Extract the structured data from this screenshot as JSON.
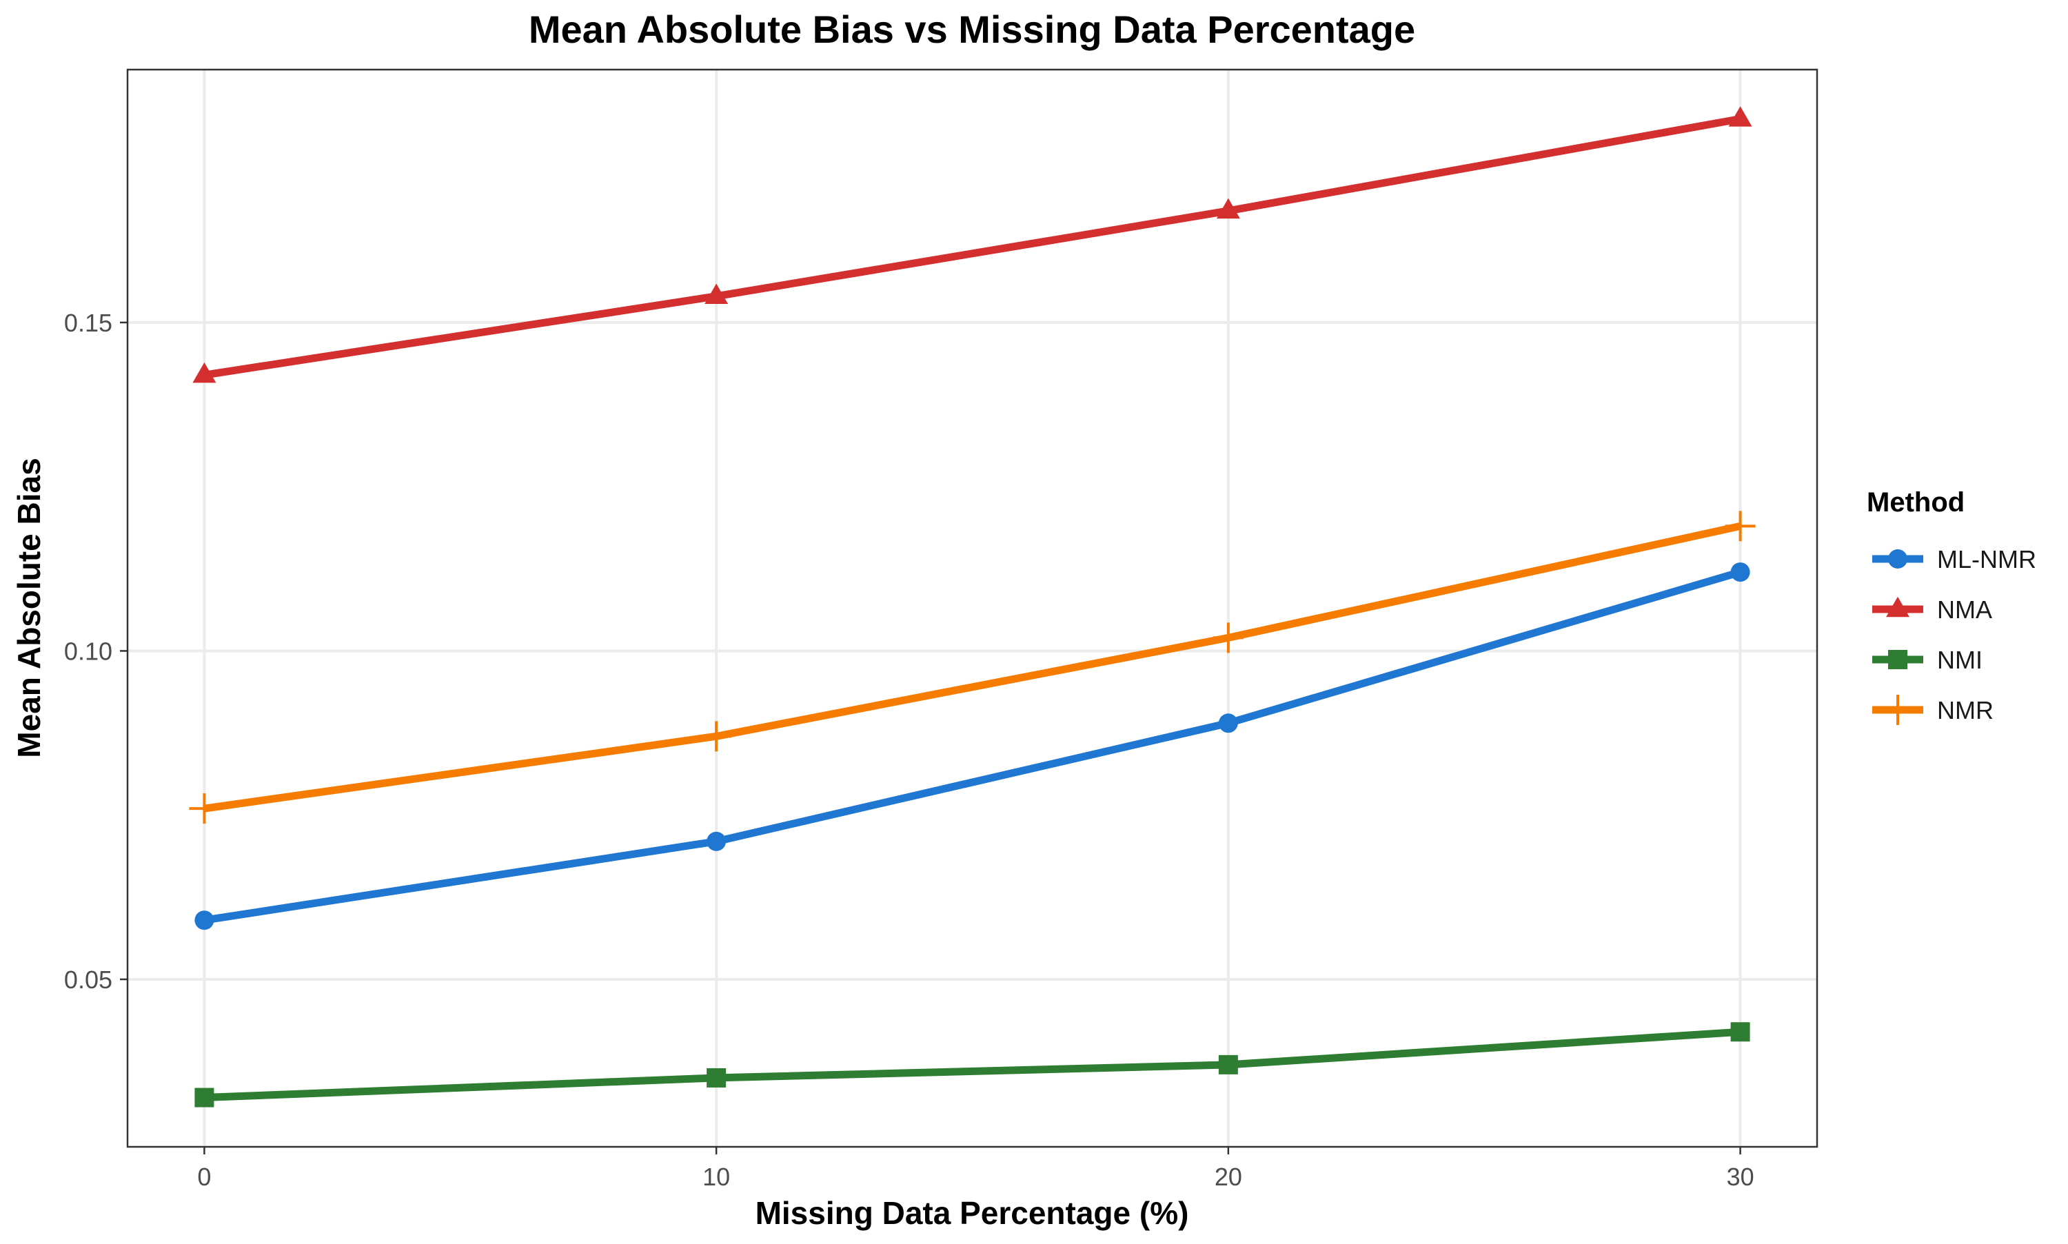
{
  "chart_data": {
    "type": "line",
    "title": "Mean Absolute Bias vs Missing Data Percentage",
    "xlabel": "Missing Data Percentage (%)",
    "ylabel": "Mean Absolute Bias",
    "x": [
      0,
      10,
      20,
      30
    ],
    "x_ticks": [
      "0",
      "10",
      "20",
      "30"
    ],
    "y_ticks": [
      "0.05",
      "0.10",
      "0.15"
    ],
    "xlim": [
      -1.5,
      31.5
    ],
    "ylim": [
      0.0245,
      0.1885
    ],
    "grid": true,
    "legend": {
      "title": "Method",
      "position": "right"
    },
    "series": [
      {
        "name": "ML-NMR",
        "values": [
          0.059,
          0.071,
          0.089,
          0.112
        ],
        "color": "#1f77d2",
        "marker": "circle"
      },
      {
        "name": "NMA",
        "values": [
          0.142,
          0.154,
          0.167,
          0.181
        ],
        "color": "#d32f2f",
        "marker": "triangle"
      },
      {
        "name": "NMI",
        "values": [
          0.032,
          0.035,
          0.037,
          0.042
        ],
        "color": "#2e7d32",
        "marker": "square"
      },
      {
        "name": "NMR",
        "values": [
          0.076,
          0.087,
          0.102,
          0.119
        ],
        "color": "#f57c00",
        "marker": "plus"
      }
    ]
  }
}
